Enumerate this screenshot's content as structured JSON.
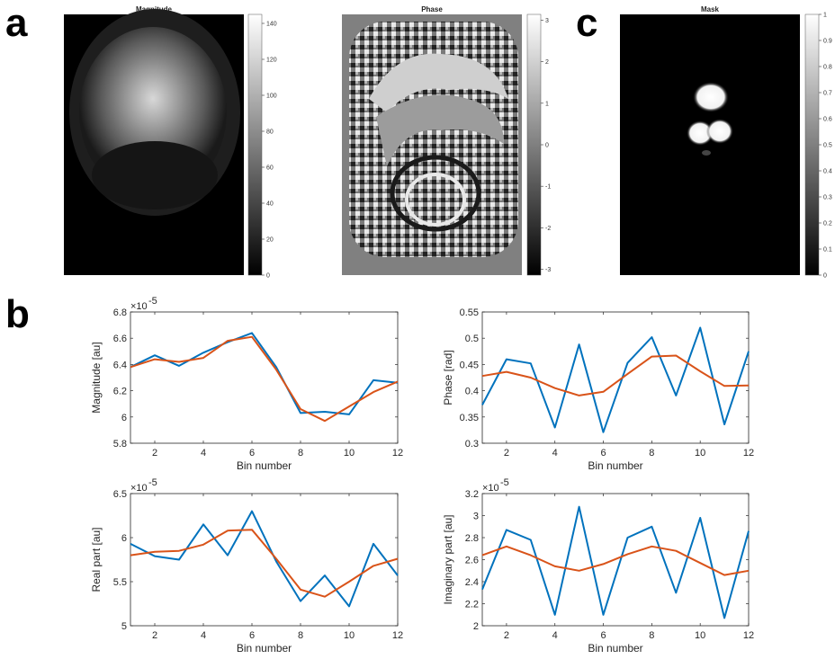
{
  "panel_labels": [
    "a",
    "c",
    "b"
  ],
  "image_panels": [
    {
      "title": "Magnitude",
      "colorbar": {
        "min": 0,
        "max": 145,
        "ticks": [
          "0",
          "20",
          "40",
          "60",
          "80",
          "100",
          "120",
          "140"
        ]
      }
    },
    {
      "title": "Phase",
      "colorbar": {
        "min": -3.14,
        "max": 3.14,
        "ticks": [
          "-3",
          "-2",
          "-1",
          "0",
          "1",
          "2",
          "3"
        ]
      }
    },
    {
      "title": "Mask",
      "colorbar": {
        "min": 0,
        "max": 1,
        "ticks": [
          "0",
          "0.1",
          "0.2",
          "0.3",
          "0.4",
          "0.5",
          "0.6",
          "0.7",
          "0.8",
          "0.9",
          "1"
        ]
      }
    }
  ],
  "colors": {
    "series_blue": "#0072BD",
    "series_orange": "#D95319",
    "axes": "#262626"
  },
  "chart_data": [
    {
      "type": "line",
      "xlabel": "Bin number",
      "ylabel": "Magnitude [au]",
      "exponent": "×10",
      "exponent_power": "-5",
      "xlim": [
        1,
        12
      ],
      "ylim": [
        5.8,
        6.8
      ],
      "xticks": [
        "2",
        "4",
        "6",
        "8",
        "10",
        "12"
      ],
      "yticks": [
        "5.8",
        "6",
        "6.2",
        "6.4",
        "6.6",
        "6.8"
      ],
      "x": [
        1,
        2,
        3,
        4,
        5,
        6,
        7,
        8,
        9,
        10,
        11,
        12
      ],
      "series": [
        {
          "values": [
            6.38,
            6.47,
            6.39,
            6.49,
            6.57,
            6.64,
            6.38,
            6.03,
            6.04,
            6.02,
            6.28,
            6.26
          ]
        },
        {
          "values": [
            6.38,
            6.44,
            6.42,
            6.45,
            6.58,
            6.61,
            6.36,
            6.06,
            5.97,
            6.08,
            6.19,
            6.27
          ]
        }
      ]
    },
    {
      "type": "line",
      "xlabel": "Bin number",
      "ylabel": "Phase [rad]",
      "exponent": "",
      "exponent_power": "",
      "xlim": [
        1,
        12
      ],
      "ylim": [
        0.3,
        0.55
      ],
      "xticks": [
        "2",
        "4",
        "6",
        "8",
        "10",
        "12"
      ],
      "yticks": [
        "0.3",
        "0.35",
        "0.4",
        "0.45",
        "0.5",
        "0.55"
      ],
      "x": [
        1,
        2,
        3,
        4,
        5,
        6,
        7,
        8,
        9,
        10,
        11,
        12
      ],
      "series": [
        {
          "values": [
            0.373,
            0.46,
            0.452,
            0.33,
            0.488,
            0.321,
            0.453,
            0.502,
            0.391,
            0.52,
            0.336,
            0.475
          ]
        },
        {
          "values": [
            0.428,
            0.436,
            0.425,
            0.405,
            0.391,
            0.398,
            0.432,
            0.465,
            0.467,
            0.437,
            0.409,
            0.41
          ]
        }
      ]
    },
    {
      "type": "line",
      "xlabel": "Bin number",
      "ylabel": "Real part [au]",
      "exponent": "×10",
      "exponent_power": "-5",
      "xlim": [
        1,
        12
      ],
      "ylim": [
        5,
        6.5
      ],
      "xticks": [
        "2",
        "4",
        "6",
        "8",
        "10",
        "12"
      ],
      "yticks": [
        "5",
        "5.5",
        "6",
        "6.5"
      ],
      "x": [
        1,
        2,
        3,
        4,
        5,
        6,
        7,
        8,
        9,
        10,
        11,
        12
      ],
      "series": [
        {
          "values": [
            5.93,
            5.79,
            5.75,
            6.15,
            5.8,
            6.3,
            5.73,
            5.28,
            5.57,
            5.22,
            5.93,
            5.57
          ]
        },
        {
          "values": [
            5.8,
            5.84,
            5.85,
            5.92,
            6.08,
            6.09,
            5.76,
            5.41,
            5.33,
            5.5,
            5.68,
            5.76
          ]
        }
      ]
    },
    {
      "type": "line",
      "xlabel": "Bin number",
      "ylabel": "Imaginary part [au]",
      "exponent": "×10",
      "exponent_power": "-5",
      "xlim": [
        1,
        12
      ],
      "ylim": [
        2,
        3.2
      ],
      "xticks": [
        "2",
        "4",
        "6",
        "8",
        "10",
        "12"
      ],
      "yticks": [
        "2",
        "2.2",
        "2.4",
        "2.6",
        "2.8",
        "3",
        "3.2"
      ],
      "x": [
        1,
        2,
        3,
        4,
        5,
        6,
        7,
        8,
        9,
        10,
        11,
        12
      ],
      "series": [
        {
          "values": [
            2.33,
            2.87,
            2.78,
            2.1,
            3.08,
            2.1,
            2.8,
            2.9,
            2.3,
            2.98,
            2.07,
            2.86
          ]
        },
        {
          "values": [
            2.64,
            2.72,
            2.64,
            2.54,
            2.5,
            2.56,
            2.65,
            2.72,
            2.68,
            2.57,
            2.46,
            2.5
          ]
        }
      ]
    }
  ]
}
